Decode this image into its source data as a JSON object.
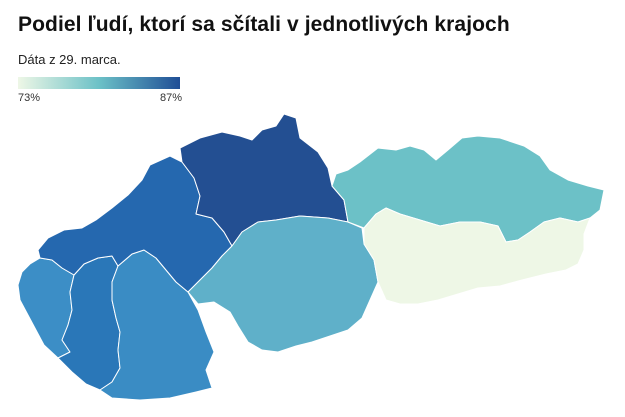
{
  "title": "Podiel ľudí, ktorí sa sčítali v jednotlivých krajoch",
  "subtitle": "Dáta z 29. marca.",
  "legend": {
    "min_label": "73%",
    "max_label": "87%",
    "min_value": 73,
    "max_value": 87,
    "color_low": "#eef7e6",
    "color_mid": "#6cc1c7",
    "color_high": "#1f4e96"
  },
  "regions": [
    {
      "id": "bratislavsky",
      "level": 0.55,
      "color": "#3c8ec6"
    },
    {
      "id": "trnavsky",
      "level": 0.75,
      "color": "#2a77b8"
    },
    {
      "id": "nitriansky",
      "level": 0.6,
      "color": "#3a8cc4"
    },
    {
      "id": "trenciansky",
      "level": 0.8,
      "color": "#2568af"
    },
    {
      "id": "zilinsky",
      "level": 1.0,
      "color": "#234f92"
    },
    {
      "id": "banskobystricky",
      "level": 0.4,
      "color": "#5fb0c9"
    },
    {
      "id": "presovsky",
      "level": 0.3,
      "color": "#6cc1c7"
    },
    {
      "id": "kosicky",
      "level": 0.0,
      "color": "#eef7e6"
    }
  ]
}
